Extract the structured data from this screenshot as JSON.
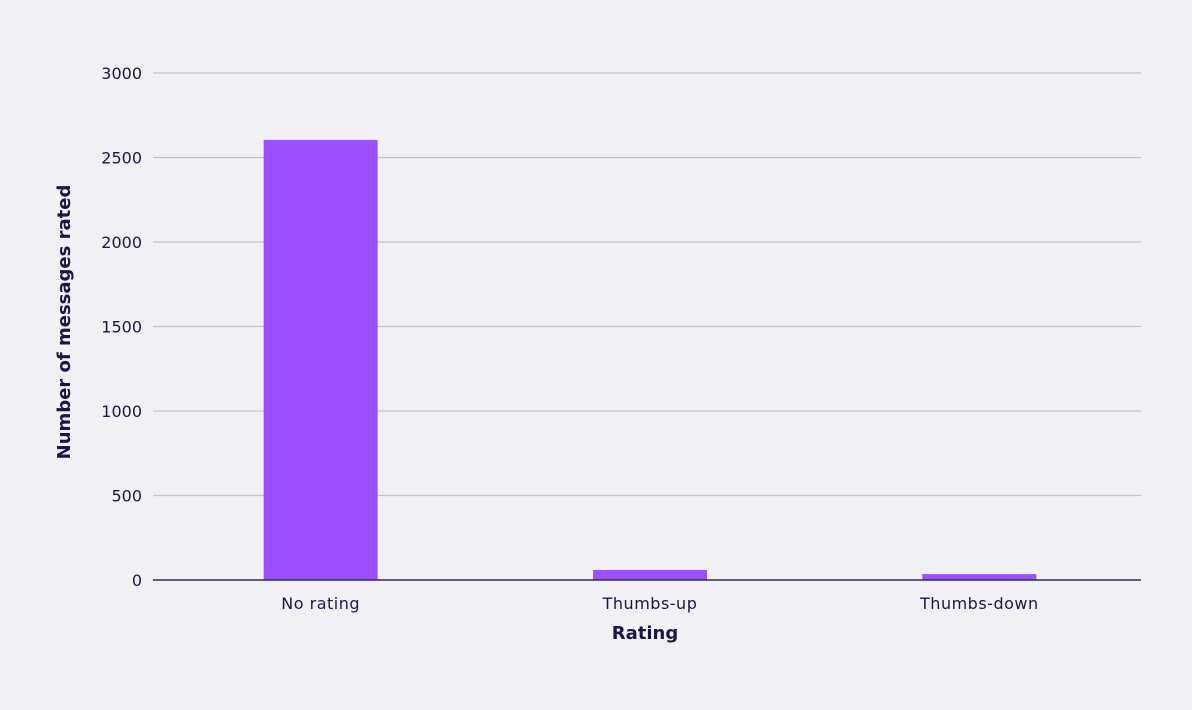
{
  "chart_data": {
    "type": "bar",
    "title": "",
    "xlabel": "Rating",
    "ylabel": "Number of messages rated",
    "categories": [
      "No rating",
      "Thumbs-up",
      "Thumbs-down"
    ],
    "values": [
      2604,
      59,
      35
    ],
    "ylim": [
      0,
      3000
    ],
    "yticks": [
      0,
      500,
      1000,
      1500,
      2000,
      2500,
      3000
    ],
    "grid": true,
    "legend": null,
    "bar_color": "#9b51ff"
  },
  "colors": {
    "background": "#f1f0f5",
    "bar": "#9b51ff",
    "grid": "#c4c3cb",
    "axis": "#2e2a5a",
    "text": "#1a1745"
  }
}
